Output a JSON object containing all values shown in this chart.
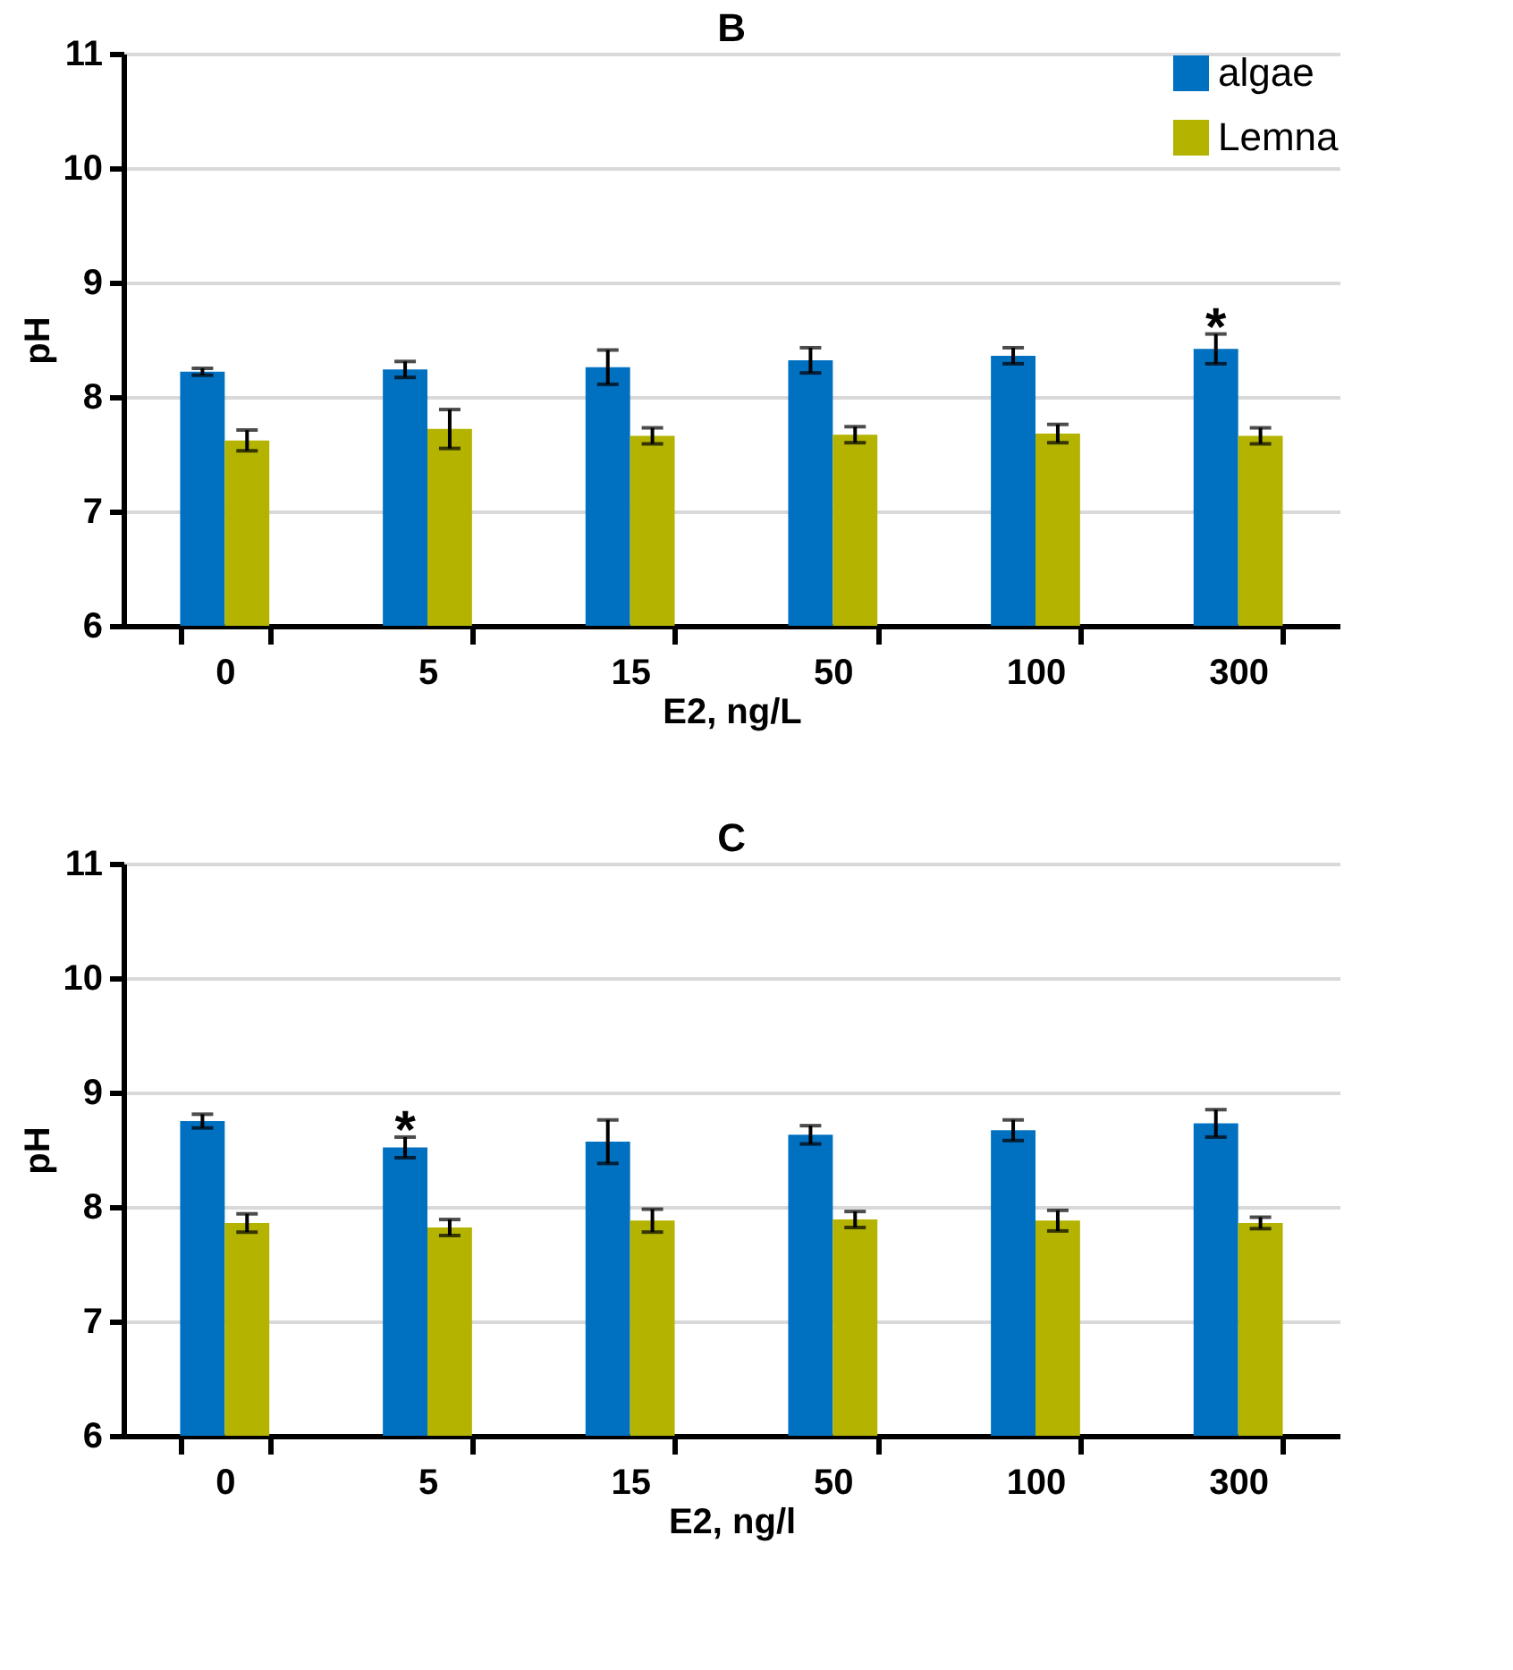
{
  "chart_data": [
    {
      "type": "bar",
      "title": "B",
      "xlabel": "E2, ng/L",
      "ylabel": "pH",
      "categories": [
        "0",
        "5",
        "15",
        "50",
        "100",
        "300"
      ],
      "series": [
        {
          "name": "algae",
          "color": "#0070c0",
          "values": [
            8.22,
            8.24,
            8.26,
            8.32,
            8.36,
            8.42
          ],
          "errors": [
            0.03,
            0.07,
            0.15,
            0.11,
            0.07,
            0.13
          ],
          "value_labels": [
            null,
            null,
            null,
            null,
            null,
            "*"
          ]
        },
        {
          "name": "Lemna",
          "color": "#b4b400",
          "values": [
            7.62,
            7.72,
            7.66,
            7.67,
            7.68,
            7.66
          ],
          "errors": [
            0.09,
            0.17,
            0.07,
            0.07,
            0.08,
            0.07
          ]
        }
      ],
      "ylim": [
        6,
        11
      ],
      "yticks": [
        6,
        7,
        8,
        9,
        10,
        11
      ],
      "grid": "y",
      "legend": "top right"
    },
    {
      "type": "bar",
      "title": "C",
      "xlabel": "E2, ng/l",
      "ylabel": "pH",
      "categories": [
        "0",
        "5",
        "15",
        "50",
        "100",
        "300"
      ],
      "series": [
        {
          "name": "algae",
          "color": "#0070c0",
          "values": [
            8.75,
            8.52,
            8.57,
            8.63,
            8.67,
            8.73
          ],
          "errors": [
            0.06,
            0.09,
            0.19,
            0.08,
            0.09,
            0.12
          ],
          "value_labels": [
            null,
            "*",
            null,
            null,
            null,
            null
          ]
        },
        {
          "name": "Lemna",
          "color": "#b4b400",
          "values": [
            7.86,
            7.82,
            7.88,
            7.89,
            7.88,
            7.86
          ],
          "errors": [
            0.08,
            0.07,
            0.1,
            0.07,
            0.09,
            0.05
          ]
        }
      ],
      "ylim": [
        6,
        11
      ],
      "yticks": [
        6,
        7,
        8,
        9,
        10,
        11
      ],
      "grid": "y",
      "legend": "top right"
    }
  ]
}
